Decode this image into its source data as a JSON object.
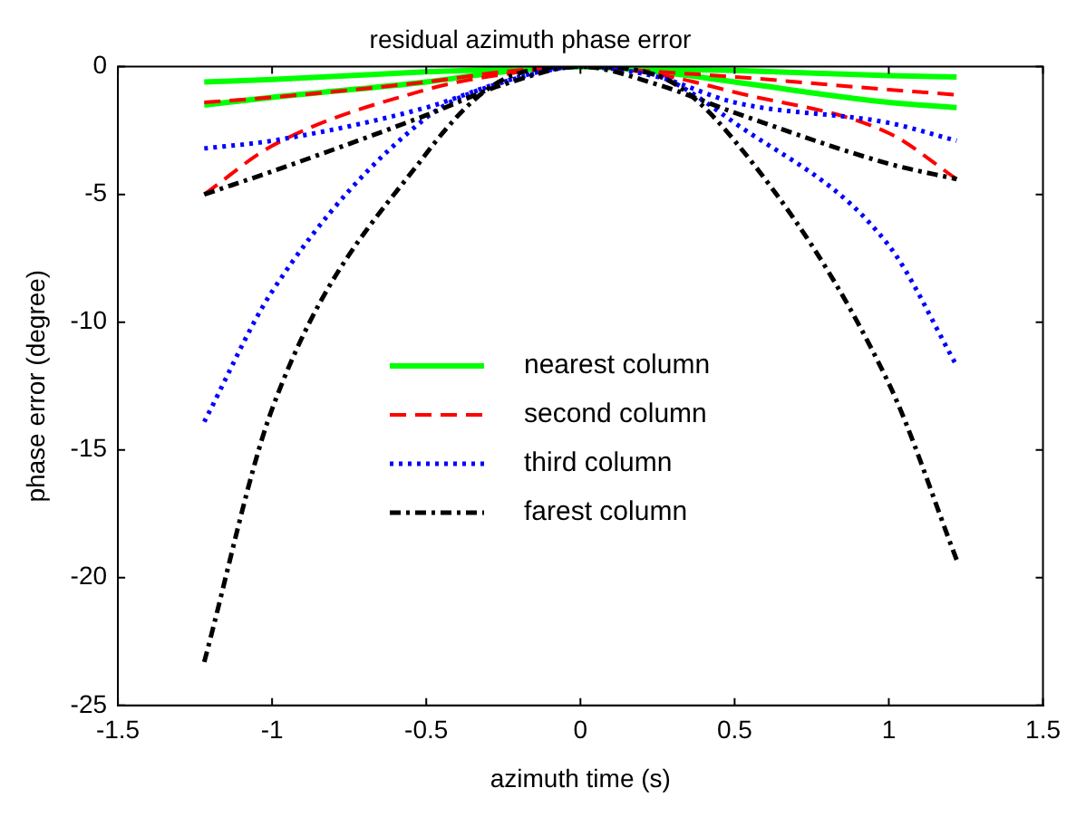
{
  "chart_data": {
    "type": "line",
    "title": "residual azimuth phase error",
    "xlabel": "azimuth time (s)",
    "ylabel": "phase error (degree)",
    "x": [
      -1.22,
      -1,
      -0.5,
      -0.25,
      0,
      0.25,
      0.5,
      1,
      1.22
    ],
    "series": [
      {
        "name": "nearest column",
        "color": "#00ff00",
        "line_style": "solid",
        "values": [
          -1.5,
          -1.2,
          -0.6,
          -0.2,
          0,
          -0.2,
          -0.6,
          -1.4,
          -1.6
        ]
      },
      {
        "color": "#00ff00",
        "line_style": "solid",
        "values": [
          -0.6,
          -0.5,
          -0.2,
          -0.1,
          0,
          -0.1,
          -0.15,
          -0.35,
          -0.4
        ]
      },
      {
        "name": "second column",
        "color": "#ff0000",
        "line_style": "dashed",
        "values": [
          -5,
          -3.1,
          -0.9,
          -0.3,
          0,
          -0.3,
          -1,
          -2.6,
          -4.4
        ]
      },
      {
        "color": "#ff0000",
        "line_style": "dashed",
        "values": [
          -1.4,
          -1.2,
          -0.6,
          -0.2,
          0,
          -0.2,
          -0.4,
          -0.9,
          -1.1
        ]
      },
      {
        "name": "third column",
        "color": "#0000ff",
        "line_style": "dotted",
        "values": [
          -13.9,
          -8.8,
          -2,
          -0.6,
          0,
          -0.35,
          -2.2,
          -7,
          -11.7
        ]
      },
      {
        "color": "#0000ff",
        "line_style": "dotted",
        "values": [
          -3.2,
          -2.9,
          -1.6,
          -0.6,
          0,
          -0.4,
          -1.4,
          -2.2,
          -2.9
        ]
      },
      {
        "name": "farest column",
        "color": "#000000",
        "line_style": "dashdot",
        "values": [
          -23.3,
          -13.4,
          -3.4,
          -0.5,
          0,
          -0.35,
          -2.9,
          -12.4,
          -19.3
        ]
      },
      {
        "color": "#000000",
        "line_style": "dashdot",
        "values": [
          -5,
          -4.1,
          -1.9,
          -0.7,
          0,
          -0.7,
          -1.8,
          -3.8,
          -4.4
        ]
      }
    ],
    "xlim": [
      -1.5,
      1.5
    ],
    "xticks": [
      -1.5,
      -1,
      -0.5,
      0,
      0.5,
      1,
      1.5
    ],
    "ylim": [
      -25,
      0
    ],
    "yticks": [
      -25,
      -20,
      -15,
      -10,
      -5,
      0
    ],
    "grid": false,
    "legend": "center",
    "marker": "none"
  }
}
